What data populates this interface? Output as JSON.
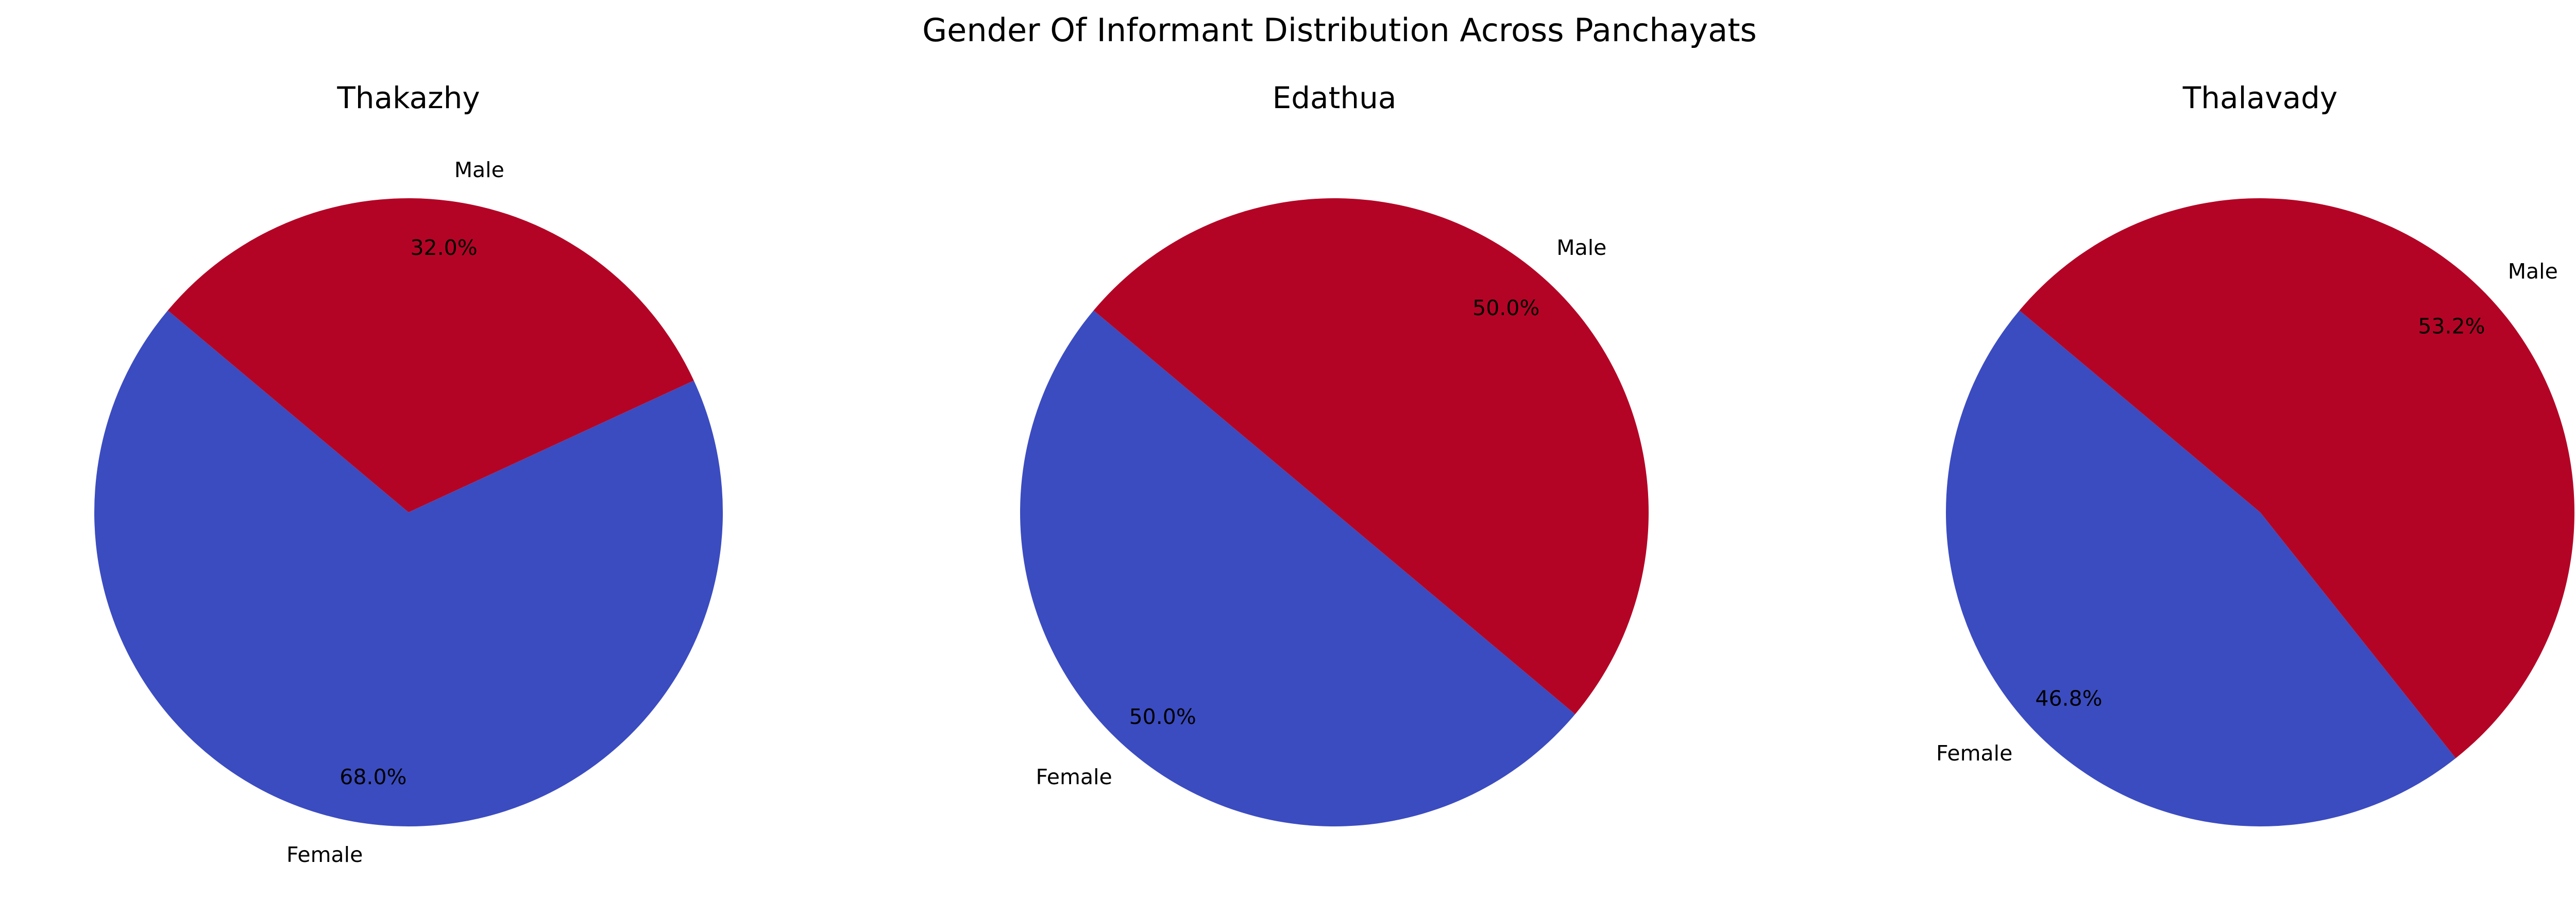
{
  "figure": {
    "title": "Gender Of Informant Distribution Across Panchayats"
  },
  "chart_data": [
    {
      "type": "pie",
      "title": "Thakazhy",
      "labels": [
        "Female",
        "Male"
      ],
      "values": [
        68.0,
        32.0
      ],
      "percent_labels": [
        "68.0%",
        "32.0%"
      ],
      "colors": [
        "#3b4cc0",
        "#b40426"
      ],
      "start_angle_deg": 140,
      "direction": "counterclockwise",
      "legend": "none"
    },
    {
      "type": "pie",
      "title": "Edathua",
      "labels": [
        "Female",
        "Male"
      ],
      "values": [
        50.0,
        50.0
      ],
      "percent_labels": [
        "50.0%",
        "50.0%"
      ],
      "colors": [
        "#3b4cc0",
        "#b40426"
      ],
      "start_angle_deg": 140,
      "direction": "counterclockwise",
      "legend": "none"
    },
    {
      "type": "pie",
      "title": "Thalavady",
      "labels": [
        "Female",
        "Male"
      ],
      "values": [
        46.8,
        53.2
      ],
      "percent_labels": [
        "46.8%",
        "53.2%"
      ],
      "colors": [
        "#3b4cc0",
        "#b40426"
      ],
      "start_angle_deg": 140,
      "direction": "counterclockwise",
      "legend": "none"
    }
  ]
}
